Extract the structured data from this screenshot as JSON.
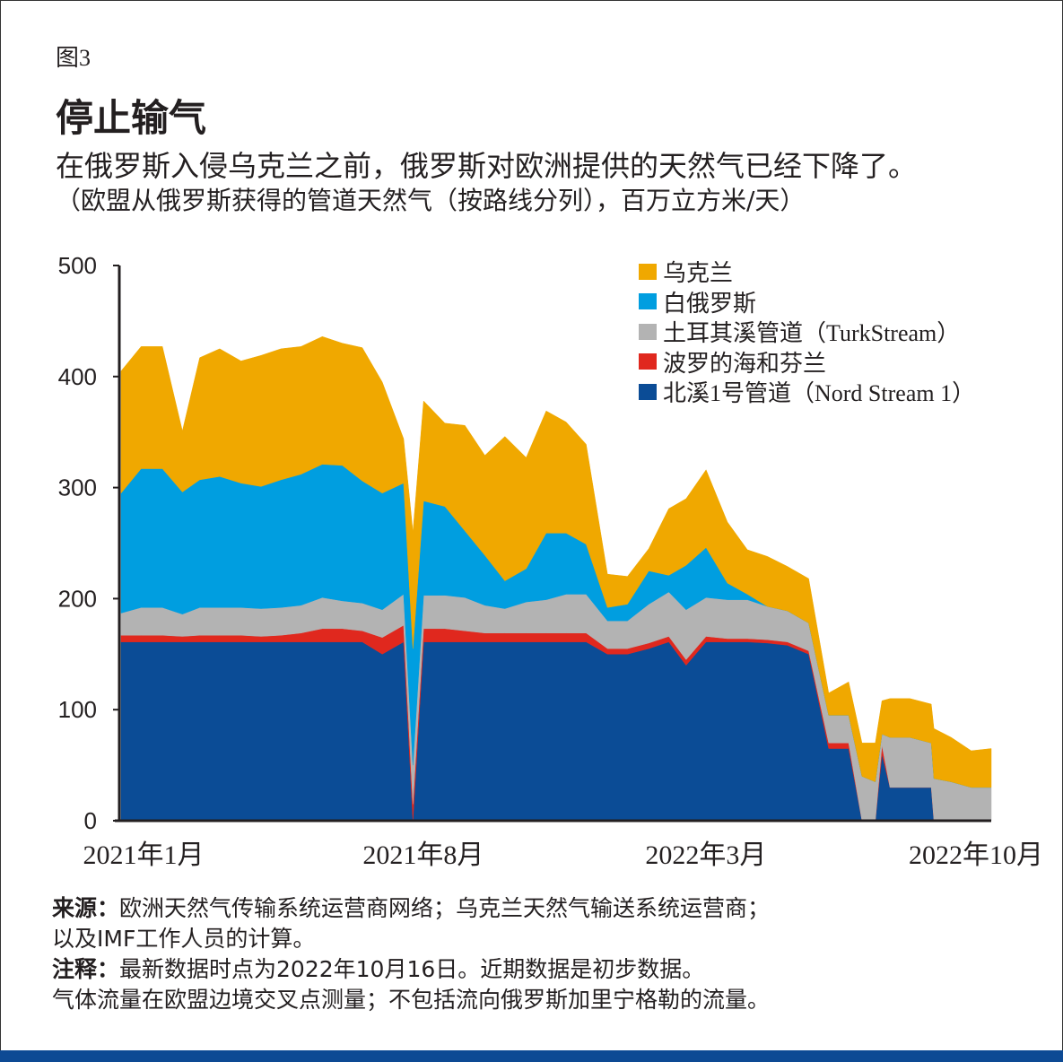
{
  "figure_number": "图3",
  "title": "停止输气",
  "subtitle": "在俄罗斯入侵乌克兰之前，俄罗斯对欧洲提供的天然气已经下降了。",
  "unit_note": "（欧盟从俄罗斯获得的管道天然气（按路线分列），百万立方米/天）",
  "notes": {
    "source_label": "来源：",
    "source_line1": "欧洲天然气传输系统运营商网络；乌克兰天然气输送系统运营商；",
    "source_line2": "以及IMF工作人员的计算。",
    "note_label": "注释：",
    "note_line1": "最新数据时点为2022年10月16日。近期数据是初步数据。",
    "note_line2": "气体流量在欧盟边境交叉点测量；不包括流向俄罗斯加里宁格勒的流量。"
  },
  "chart_data": {
    "type": "area",
    "stacked": true,
    "ylim": [
      0,
      500
    ],
    "yticks": [
      0,
      100,
      200,
      300,
      400,
      500
    ],
    "xlim": [
      "2021-01-01",
      "2022-10-16"
    ],
    "xticks": [
      {
        "date": "2021-01-01",
        "label": "2021年1月"
      },
      {
        "date": "2021-08-01",
        "label": "2021年8月"
      },
      {
        "date": "2022-03-01",
        "label": "2022年3月"
      },
      {
        "date": "2022-10-01",
        "label": "2022年10月"
      }
    ],
    "legend_position": "top-right",
    "grid": false,
    "x": [
      "2021-01-01",
      "2021-01-16",
      "2021-02-01",
      "2021-02-16",
      "2021-03-01",
      "2021-03-16",
      "2021-04-01",
      "2021-04-16",
      "2021-05-01",
      "2021-05-16",
      "2021-06-01",
      "2021-06-16",
      "2021-07-01",
      "2021-07-16",
      "2021-08-01",
      "2021-08-08",
      "2021-08-16",
      "2021-09-01",
      "2021-09-16",
      "2021-10-01",
      "2021-10-16",
      "2021-11-01",
      "2021-11-16",
      "2021-12-01",
      "2021-12-16",
      "2022-01-01",
      "2022-01-16",
      "2022-02-01",
      "2022-02-16",
      "2022-03-01",
      "2022-03-16",
      "2022-04-01",
      "2022-04-16",
      "2022-05-01",
      "2022-05-16",
      "2022-06-01",
      "2022-06-16",
      "2022-07-01",
      "2022-07-11",
      "2022-07-21",
      "2022-07-26",
      "2022-08-01",
      "2022-08-16",
      "2022-09-01",
      "2022-09-03",
      "2022-09-16",
      "2022-10-01",
      "2022-10-16"
    ],
    "series": [
      {
        "name": "北溪1号管道（Nord Stream 1）",
        "color": "#0b4c96",
        "values": [
          161,
          161,
          161,
          161,
          161,
          161,
          161,
          161,
          161,
          161,
          161,
          161,
          161,
          150,
          161,
          0,
          161,
          161,
          161,
          161,
          161,
          161,
          161,
          161,
          161,
          150,
          150,
          155,
          161,
          140,
          161,
          161,
          161,
          160,
          158,
          150,
          65,
          65,
          0,
          0,
          60,
          30,
          30,
          30,
          0,
          0,
          0,
          0
        ]
      },
      {
        "name": "波罗的海和芬兰",
        "color": "#e0281e",
        "values": [
          6,
          6,
          6,
          5,
          6,
          6,
          6,
          5,
          6,
          8,
          12,
          12,
          10,
          15,
          15,
          15,
          12,
          12,
          10,
          8,
          8,
          8,
          8,
          8,
          8,
          5,
          5,
          5,
          5,
          5,
          5,
          3,
          3,
          3,
          3,
          3,
          5,
          5,
          0,
          0,
          8,
          0,
          0,
          0,
          0,
          0,
          0,
          0
        ]
      },
      {
        "name": "土耳其溪管道（TurkStream）",
        "color": "#b3b3b3",
        "values": [
          20,
          25,
          25,
          20,
          25,
          25,
          25,
          25,
          25,
          25,
          28,
          25,
          25,
          25,
          28,
          35,
          30,
          30,
          30,
          25,
          22,
          28,
          30,
          35,
          35,
          25,
          25,
          35,
          40,
          45,
          35,
          35,
          35,
          30,
          28,
          25,
          25,
          25,
          40,
          35,
          10,
          45,
          45,
          40,
          38,
          35,
          30,
          30
        ]
      },
      {
        "name": "白俄罗斯",
        "color": "#009ee0",
        "values": [
          108,
          125,
          125,
          110,
          115,
          118,
          112,
          110,
          115,
          118,
          120,
          122,
          110,
          105,
          100,
          105,
          85,
          80,
          60,
          45,
          25,
          30,
          60,
          55,
          45,
          12,
          15,
          30,
          15,
          40,
          45,
          15,
          5,
          0,
          0,
          0,
          0,
          0,
          0,
          0,
          0,
          0,
          0,
          0,
          0,
          0,
          0,
          0
        ]
      },
      {
        "name": "乌克兰",
        "color": "#f0a800",
        "values": [
          110,
          110,
          110,
          55,
          110,
          115,
          110,
          118,
          118,
          115,
          115,
          110,
          120,
          100,
          40,
          105,
          90,
          75,
          95,
          90,
          130,
          100,
          110,
          100,
          90,
          30,
          25,
          20,
          60,
          60,
          70,
          55,
          40,
          45,
          40,
          40,
          20,
          30,
          30,
          35,
          30,
          35,
          35,
          35,
          45,
          40,
          33,
          35
        ]
      }
    ]
  }
}
